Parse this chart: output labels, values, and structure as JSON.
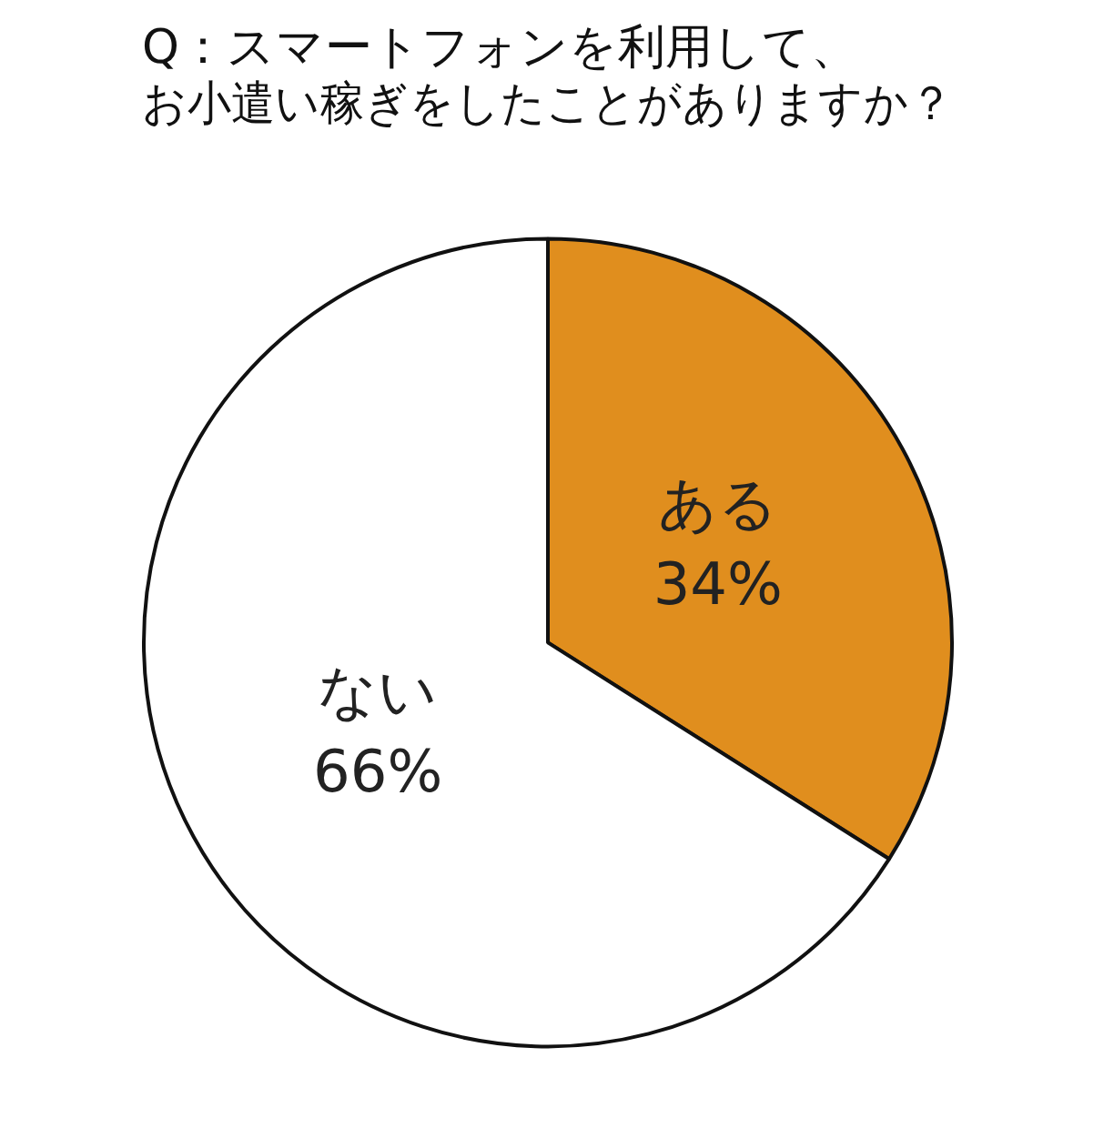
{
  "chart_data": {
    "type": "pie",
    "title": "Q：スマートフォンを利用して、お小遣い稼ぎをしたことがありますか？",
    "categories": [
      "ある",
      "ない"
    ],
    "values": [
      34,
      66
    ],
    "colors": [
      "#e08e1e",
      "#ffffff"
    ],
    "value_labels": [
      "34%",
      "66%"
    ],
    "legend": false
  }
}
